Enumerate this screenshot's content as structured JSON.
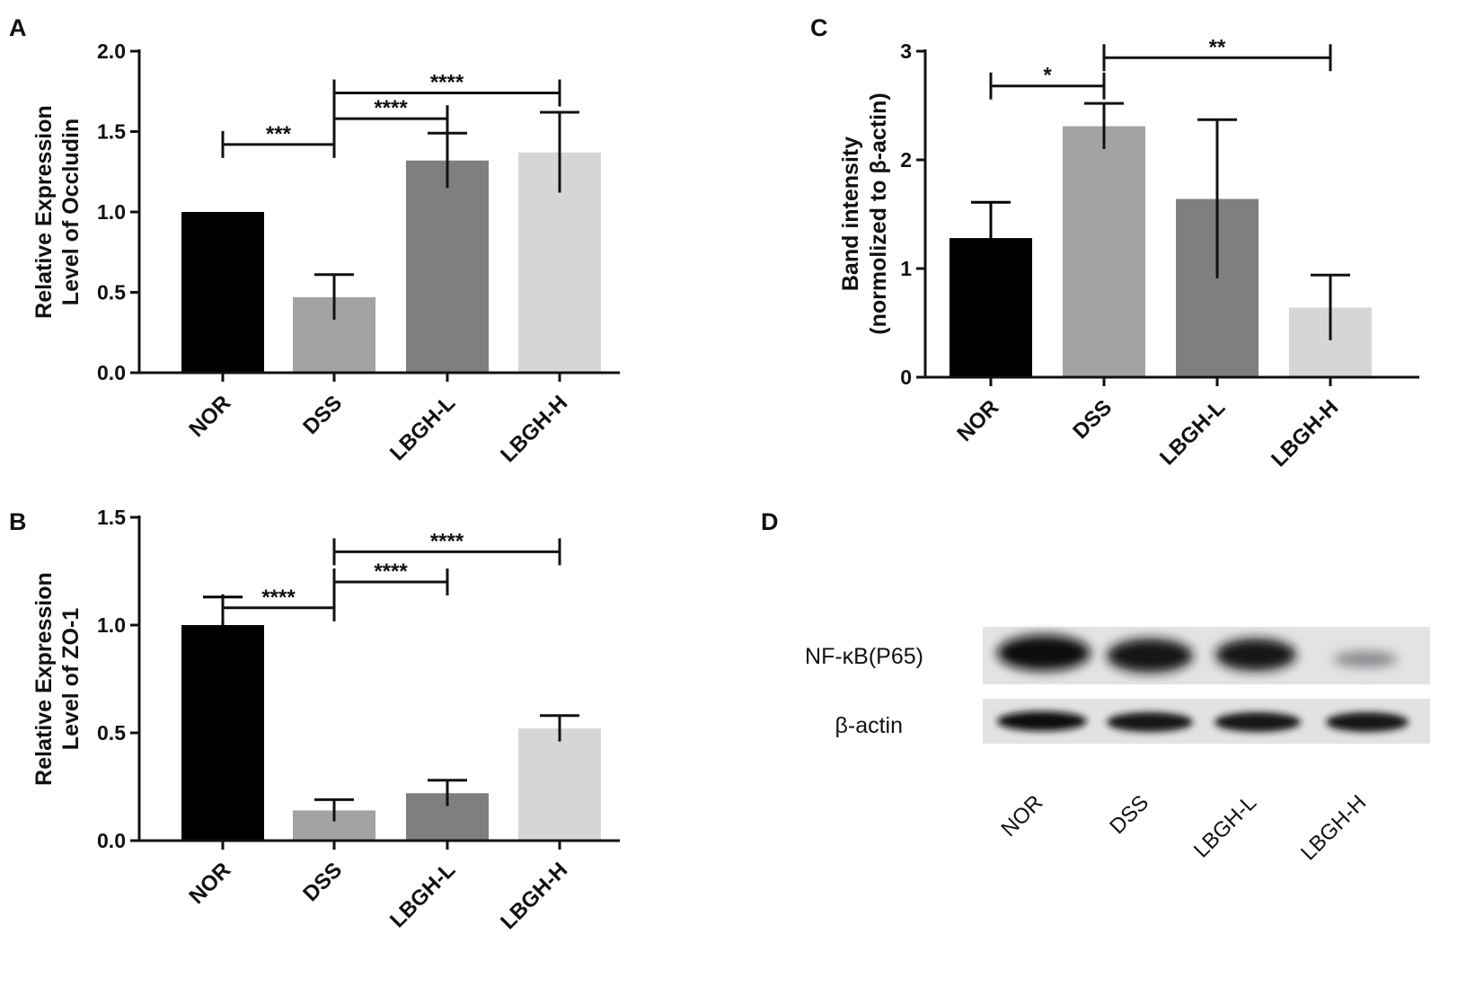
{
  "panels": {
    "A": {
      "letter": "A"
    },
    "B": {
      "letter": "B"
    },
    "C": {
      "letter": "C"
    },
    "D": {
      "letter": "D"
    }
  },
  "chart_data": [
    {
      "id": "A",
      "type": "bar",
      "categories": [
        "NOR",
        "DSS",
        "LBGH-L",
        "LBGH-H"
      ],
      "values": [
        1.0,
        0.47,
        1.32,
        1.37
      ],
      "errors": [
        0,
        0.14,
        0.17,
        0.25
      ],
      "colors": [
        "#000000",
        "#a3a3a6",
        "#7f7f7f",
        "#d6d6d6"
      ],
      "ylabel": [
        "Relative Expression",
        "Level of Occludin"
      ],
      "ylim": [
        0,
        2.0
      ],
      "yticks": [
        "0.0",
        "0.5",
        "1.0",
        "1.5",
        "2.0"
      ],
      "significance": [
        {
          "from": 0,
          "to": 1,
          "y": 1.42,
          "label": "***"
        },
        {
          "from": 1,
          "to": 2,
          "y": 1.58,
          "label": "****"
        },
        {
          "from": 1,
          "to": 3,
          "y": 1.74,
          "label": "****"
        }
      ]
    },
    {
      "id": "B",
      "type": "bar",
      "categories": [
        "NOR",
        "DSS",
        "LBGH-L",
        "LBGH-H"
      ],
      "values": [
        1.0,
        0.14,
        0.22,
        0.52
      ],
      "errors": [
        0.13,
        0.05,
        0.06,
        0.06
      ],
      "colors": [
        "#000000",
        "#a3a3a6",
        "#7f7f7f",
        "#d6d6d6"
      ],
      "ylabel": [
        "Relative Expression",
        "Level of ZO-1"
      ],
      "ylim": [
        0,
        1.5
      ],
      "yticks": [
        "0.0",
        "0.5",
        "1.0",
        "1.5"
      ],
      "significance": [
        {
          "from": 0,
          "to": 1,
          "y": 1.08,
          "label": "****"
        },
        {
          "from": 1,
          "to": 2,
          "y": 1.2,
          "label": "****"
        },
        {
          "from": 1,
          "to": 3,
          "y": 1.34,
          "label": "****"
        }
      ]
    },
    {
      "id": "C",
      "type": "bar",
      "categories": [
        "NOR",
        "DSS",
        "LBGH-L",
        "LBGH-H"
      ],
      "values": [
        1.28,
        2.31,
        1.64,
        0.64
      ],
      "errors": [
        0.33,
        0.21,
        0.73,
        0.3
      ],
      "colors": [
        "#000000",
        "#a3a3a6",
        "#7f7f7f",
        "#d6d6d6"
      ],
      "ylabel": [
        "Band intensity",
        "(normolized to β-actin)"
      ],
      "ylim": [
        0,
        3
      ],
      "yticks": [
        "0",
        "1",
        "2",
        "3"
      ],
      "significance": [
        {
          "from": 0,
          "to": 1,
          "y": 2.68,
          "label": "*"
        },
        {
          "from": 1,
          "to": 3,
          "y": 2.94,
          "label": "**"
        }
      ]
    }
  ],
  "blot": {
    "rows": [
      "NF-κB(P65)",
      "β-actin"
    ],
    "lanes": [
      "NOR",
      "DSS",
      "LBGH-L",
      "LBGH-H"
    ]
  }
}
